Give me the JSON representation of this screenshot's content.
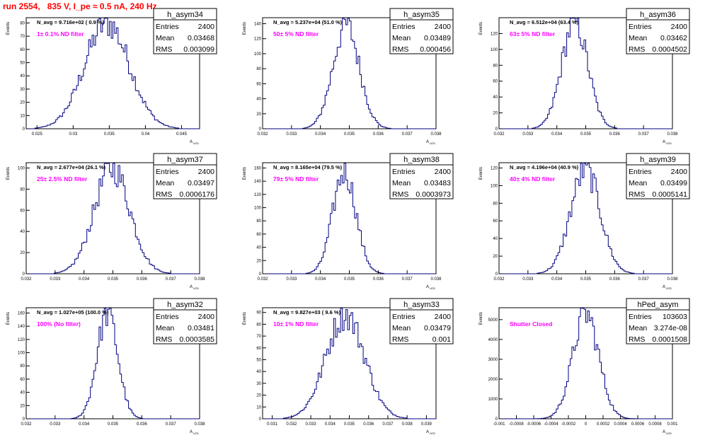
{
  "page": {
    "title": "run 2554,   835 V, I_pe ≈ 0.5 nA, 240 Hz"
  },
  "labels": {
    "ylabel": "Events",
    "xlabel": "A",
    "xlabel_sub": "LED",
    "entries": "Entries",
    "mean": "Mean",
    "rms": "RMS"
  },
  "colors": {
    "histogram": "#000080",
    "filter_text": "#ff00ff",
    "title": "#ff0000"
  },
  "chart_data": [
    {
      "type": "histogram",
      "name": "h_asym34",
      "navg": "N_avg = 9.716e+02 ( 0.9 %)",
      "filter": "1± 0.1% ND filter",
      "stats": {
        "entries": "2400",
        "mean": "0.03468",
        "rms": "0.003099"
      },
      "xlim": [
        0.0235,
        0.0475
      ],
      "ylim": [
        0,
        84
      ],
      "xticks": [
        0.025,
        0.03,
        0.035,
        0.04,
        0.045
      ],
      "xtick_labels": [
        "0.025",
        "0.03",
        "0.035",
        "0.04",
        "0.045"
      ],
      "yticks": [
        0,
        10,
        20,
        30,
        40,
        50,
        60,
        70,
        80
      ],
      "mean": 0.03468,
      "sigma": 0.0031,
      "peak": 80
    },
    {
      "type": "histogram",
      "name": "h_asym35",
      "navg": "N_avg = 5.237e+04 (51.0 %)",
      "filter": "50± 5% ND filter",
      "stats": {
        "entries": "2400",
        "mean": "0.03489",
        "rms": "0.000456"
      },
      "xlim": [
        0.032,
        0.038
      ],
      "ylim": [
        0,
        148
      ],
      "xticks": [
        0.032,
        0.033,
        0.034,
        0.035,
        0.036,
        0.037,
        0.038
      ],
      "xtick_labels": [
        "0.032",
        "0.033",
        "0.034",
        "0.035",
        "0.036",
        "0.037",
        "0.038"
      ],
      "yticks": [
        0,
        20,
        40,
        60,
        80,
        100,
        120,
        140
      ],
      "mean": 0.03489,
      "sigma": 0.000456,
      "peak": 138
    },
    {
      "type": "histogram",
      "name": "h_asym36",
      "navg": "N_avg = 6.512e+04 (63.4 %)",
      "filter": "63± 5% ND filter",
      "stats": {
        "entries": "2400",
        "mean": "0.03462",
        "rms": "0.0004502"
      },
      "xlim": [
        0.032,
        0.038
      ],
      "ylim": [
        0,
        140
      ],
      "xticks": [
        0.032,
        0.033,
        0.034,
        0.035,
        0.036,
        0.037,
        0.038
      ],
      "xtick_labels": [
        "0.032",
        "0.033",
        "0.034",
        "0.035",
        "0.036",
        "0.037",
        "0.038"
      ],
      "yticks": [
        0,
        20,
        40,
        60,
        80,
        100,
        120
      ],
      "mean": 0.03462,
      "sigma": 0.00045,
      "peak": 135
    },
    {
      "type": "histogram",
      "name": "h_asym37",
      "navg": "N_avg = 2.677e+04 (26.1 %)",
      "filter": "25± 2.5% ND filter",
      "stats": {
        "entries": "2400",
        "mean": "0.03497",
        "rms": "0.0006176"
      },
      "xlim": [
        0.032,
        0.038
      ],
      "ylim": [
        0,
        105
      ],
      "xticks": [
        0.032,
        0.033,
        0.034,
        0.035,
        0.036,
        0.037,
        0.038
      ],
      "xtick_labels": [
        "0.032",
        "0.033",
        "0.034",
        "0.035",
        "0.036",
        "0.037",
        "0.038"
      ],
      "yticks": [
        0,
        20,
        40,
        60,
        80,
        100
      ],
      "mean": 0.03497,
      "sigma": 0.00062,
      "peak": 100
    },
    {
      "type": "histogram",
      "name": "h_asym38",
      "navg": "N_avg = 8.165e+04 (79.5 %)",
      "filter": "79± 5% ND filter",
      "stats": {
        "entries": "2400",
        "mean": "0.03483",
        "rms": "0.0003973"
      },
      "xlim": [
        0.032,
        0.038
      ],
      "ylim": [
        0,
        168
      ],
      "xticks": [
        0.032,
        0.033,
        0.034,
        0.035,
        0.036,
        0.037,
        0.038
      ],
      "xtick_labels": [
        "0.032",
        "0.033",
        "0.034",
        "0.035",
        "0.036",
        "0.037",
        "0.038"
      ],
      "yticks": [
        0,
        20,
        40,
        60,
        80,
        100,
        120,
        140,
        160
      ],
      "mean": 0.03483,
      "sigma": 0.0004,
      "peak": 155
    },
    {
      "type": "histogram",
      "name": "h_asym39",
      "navg": "N_avg = 4.196e+04 (40.9 %)",
      "filter": "40± 4% ND filter",
      "stats": {
        "entries": "2400",
        "mean": "0.03499",
        "rms": "0.0005141"
      },
      "xlim": [
        0.032,
        0.038
      ],
      "ylim": [
        0,
        126
      ],
      "xticks": [
        0.032,
        0.033,
        0.034,
        0.035,
        0.036,
        0.037,
        0.038
      ],
      "xtick_labels": [
        "0.032",
        "0.033",
        "0.034",
        "0.035",
        "0.036",
        "0.037",
        "0.038"
      ],
      "yticks": [
        0,
        20,
        40,
        60,
        80,
        100,
        120
      ],
      "mean": 0.03499,
      "sigma": 0.00051,
      "peak": 118
    },
    {
      "type": "histogram",
      "name": "h_asym32",
      "navg": "N_avg = 1.027e+05 (100.0 %)",
      "filter": "100% (No filter)",
      "stats": {
        "entries": "2400",
        "mean": "0.03481",
        "rms": "0.0003585"
      },
      "xlim": [
        0.032,
        0.038
      ],
      "ylim": [
        0,
        168
      ],
      "xticks": [
        0.032,
        0.033,
        0.034,
        0.035,
        0.036,
        0.037,
        0.038
      ],
      "xtick_labels": [
        "0.032",
        "0.033",
        "0.034",
        "0.035",
        "0.036",
        "0.037",
        "0.038"
      ],
      "yticks": [
        0,
        20,
        40,
        60,
        80,
        100,
        120,
        140,
        160
      ],
      "mean": 0.03481,
      "sigma": 0.00036,
      "peak": 160
    },
    {
      "type": "histogram",
      "name": "h_asym33",
      "navg": "N_avg = 9.827e+03 ( 9.6 %)",
      "filter": "10± 1% ND filter",
      "stats": {
        "entries": "2400",
        "mean": "0.03479",
        "rms": "0.001"
      },
      "xlim": [
        0.0305,
        0.0395
      ],
      "ylim": [
        0,
        94
      ],
      "xticks": [
        0.031,
        0.032,
        0.033,
        0.034,
        0.035,
        0.036,
        0.037,
        0.038,
        0.039
      ],
      "xtick_labels": [
        "0.031",
        "0.032",
        "0.033",
        "0.034",
        "0.035",
        "0.036",
        "0.037",
        "0.038",
        "0.039"
      ],
      "yticks": [
        0,
        10,
        20,
        30,
        40,
        50,
        60,
        70,
        80,
        90
      ],
      "mean": 0.03479,
      "sigma": 0.001,
      "peak": 88
    },
    {
      "type": "histogram",
      "name": "hPed_asym",
      "navg": "",
      "filter": "Shutter Closed",
      "stats": {
        "entries": "103603",
        "mean": "3.274e-08",
        "rms": "0.0001508"
      },
      "xlim": [
        -0.001,
        0.001
      ],
      "ylim": [
        0,
        5600
      ],
      "xticks": [
        -0.001,
        -0.0008,
        -0.0006,
        -0.0004,
        -0.0002,
        0,
        0.0002,
        0.0004,
        0.0006,
        0.0008,
        0.001
      ],
      "xtick_labels": [
        "-0.001",
        "-0.0008",
        "-0.0006",
        "-0.0004",
        "-0.0002",
        "0",
        "0.0002",
        "0.0004",
        "0.0006",
        "0.0008",
        "0.001"
      ],
      "yticks": [
        0,
        1000,
        2000,
        3000,
        4000,
        5000
      ],
      "mean": 0.0,
      "sigma": 0.00015,
      "peak": 5300
    }
  ]
}
